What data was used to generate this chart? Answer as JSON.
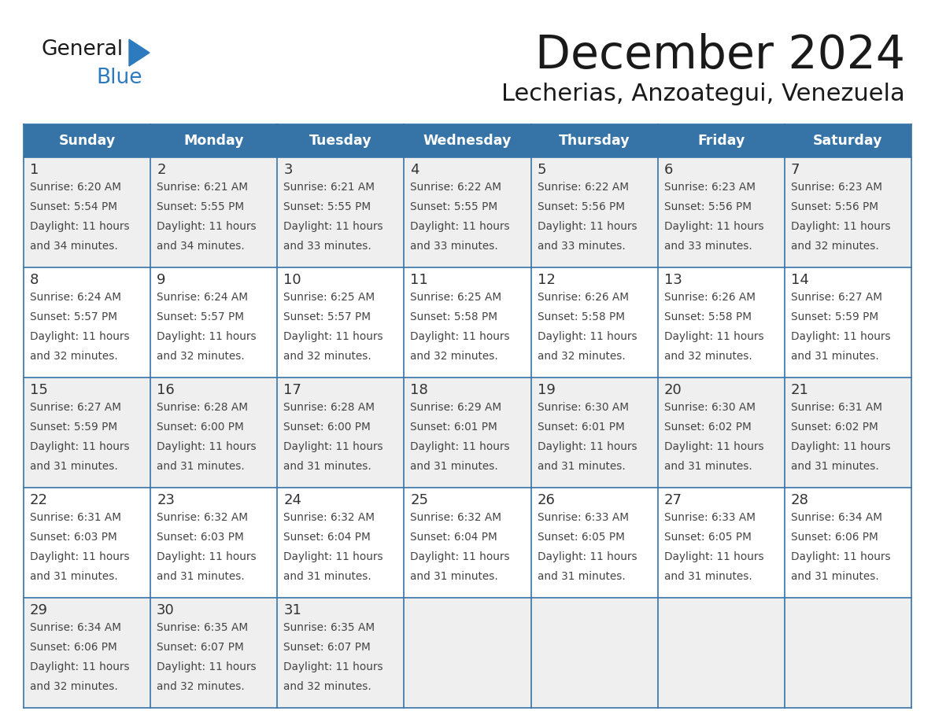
{
  "title": "December 2024",
  "subtitle": "Lecherias, Anzoategui, Venezuela",
  "days_of_week": [
    "Sunday",
    "Monday",
    "Tuesday",
    "Wednesday",
    "Thursday",
    "Friday",
    "Saturday"
  ],
  "header_bg": "#3674A8",
  "header_text": "#FFFFFF",
  "cell_bg_odd": "#EFEFEF",
  "cell_bg_even": "#FFFFFF",
  "cell_border": "#3674A8",
  "day_num_color": "#333333",
  "cell_text_color": "#444444",
  "logo_general_color": "#1a1a1a",
  "logo_blue_color": "#2E7ABF",
  "weeks": [
    {
      "days": [
        {
          "date": 1,
          "sunrise": "6:20 AM",
          "sunset": "5:54 PM",
          "daylight_h": "11 hours",
          "daylight_m": "and 34 minutes."
        },
        {
          "date": 2,
          "sunrise": "6:21 AM",
          "sunset": "5:55 PM",
          "daylight_h": "11 hours",
          "daylight_m": "and 34 minutes."
        },
        {
          "date": 3,
          "sunrise": "6:21 AM",
          "sunset": "5:55 PM",
          "daylight_h": "11 hours",
          "daylight_m": "and 33 minutes."
        },
        {
          "date": 4,
          "sunrise": "6:22 AM",
          "sunset": "5:55 PM",
          "daylight_h": "11 hours",
          "daylight_m": "and 33 minutes."
        },
        {
          "date": 5,
          "sunrise": "6:22 AM",
          "sunset": "5:56 PM",
          "daylight_h": "11 hours",
          "daylight_m": "and 33 minutes."
        },
        {
          "date": 6,
          "sunrise": "6:23 AM",
          "sunset": "5:56 PM",
          "daylight_h": "11 hours",
          "daylight_m": "and 33 minutes."
        },
        {
          "date": 7,
          "sunrise": "6:23 AM",
          "sunset": "5:56 PM",
          "daylight_h": "11 hours",
          "daylight_m": "and 32 minutes."
        }
      ]
    },
    {
      "days": [
        {
          "date": 8,
          "sunrise": "6:24 AM",
          "sunset": "5:57 PM",
          "daylight_h": "11 hours",
          "daylight_m": "and 32 minutes."
        },
        {
          "date": 9,
          "sunrise": "6:24 AM",
          "sunset": "5:57 PM",
          "daylight_h": "11 hours",
          "daylight_m": "and 32 minutes."
        },
        {
          "date": 10,
          "sunrise": "6:25 AM",
          "sunset": "5:57 PM",
          "daylight_h": "11 hours",
          "daylight_m": "and 32 minutes."
        },
        {
          "date": 11,
          "sunrise": "6:25 AM",
          "sunset": "5:58 PM",
          "daylight_h": "11 hours",
          "daylight_m": "and 32 minutes."
        },
        {
          "date": 12,
          "sunrise": "6:26 AM",
          "sunset": "5:58 PM",
          "daylight_h": "11 hours",
          "daylight_m": "and 32 minutes."
        },
        {
          "date": 13,
          "sunrise": "6:26 AM",
          "sunset": "5:58 PM",
          "daylight_h": "11 hours",
          "daylight_m": "and 32 minutes."
        },
        {
          "date": 14,
          "sunrise": "6:27 AM",
          "sunset": "5:59 PM",
          "daylight_h": "11 hours",
          "daylight_m": "and 31 minutes."
        }
      ]
    },
    {
      "days": [
        {
          "date": 15,
          "sunrise": "6:27 AM",
          "sunset": "5:59 PM",
          "daylight_h": "11 hours",
          "daylight_m": "and 31 minutes."
        },
        {
          "date": 16,
          "sunrise": "6:28 AM",
          "sunset": "6:00 PM",
          "daylight_h": "11 hours",
          "daylight_m": "and 31 minutes."
        },
        {
          "date": 17,
          "sunrise": "6:28 AM",
          "sunset": "6:00 PM",
          "daylight_h": "11 hours",
          "daylight_m": "and 31 minutes."
        },
        {
          "date": 18,
          "sunrise": "6:29 AM",
          "sunset": "6:01 PM",
          "daylight_h": "11 hours",
          "daylight_m": "and 31 minutes."
        },
        {
          "date": 19,
          "sunrise": "6:30 AM",
          "sunset": "6:01 PM",
          "daylight_h": "11 hours",
          "daylight_m": "and 31 minutes."
        },
        {
          "date": 20,
          "sunrise": "6:30 AM",
          "sunset": "6:02 PM",
          "daylight_h": "11 hours",
          "daylight_m": "and 31 minutes."
        },
        {
          "date": 21,
          "sunrise": "6:31 AM",
          "sunset": "6:02 PM",
          "daylight_h": "11 hours",
          "daylight_m": "and 31 minutes."
        }
      ]
    },
    {
      "days": [
        {
          "date": 22,
          "sunrise": "6:31 AM",
          "sunset": "6:03 PM",
          "daylight_h": "11 hours",
          "daylight_m": "and 31 minutes."
        },
        {
          "date": 23,
          "sunrise": "6:32 AM",
          "sunset": "6:03 PM",
          "daylight_h": "11 hours",
          "daylight_m": "and 31 minutes."
        },
        {
          "date": 24,
          "sunrise": "6:32 AM",
          "sunset": "6:04 PM",
          "daylight_h": "11 hours",
          "daylight_m": "and 31 minutes."
        },
        {
          "date": 25,
          "sunrise": "6:32 AM",
          "sunset": "6:04 PM",
          "daylight_h": "11 hours",
          "daylight_m": "and 31 minutes."
        },
        {
          "date": 26,
          "sunrise": "6:33 AM",
          "sunset": "6:05 PM",
          "daylight_h": "11 hours",
          "daylight_m": "and 31 minutes."
        },
        {
          "date": 27,
          "sunrise": "6:33 AM",
          "sunset": "6:05 PM",
          "daylight_h": "11 hours",
          "daylight_m": "and 31 minutes."
        },
        {
          "date": 28,
          "sunrise": "6:34 AM",
          "sunset": "6:06 PM",
          "daylight_h": "11 hours",
          "daylight_m": "and 31 minutes."
        }
      ]
    },
    {
      "days": [
        {
          "date": 29,
          "sunrise": "6:34 AM",
          "sunset": "6:06 PM",
          "daylight_h": "11 hours",
          "daylight_m": "and 32 minutes."
        },
        {
          "date": 30,
          "sunrise": "6:35 AM",
          "sunset": "6:07 PM",
          "daylight_h": "11 hours",
          "daylight_m": "and 32 minutes."
        },
        {
          "date": 31,
          "sunrise": "6:35 AM",
          "sunset": "6:07 PM",
          "daylight_h": "11 hours",
          "daylight_m": "and 32 minutes."
        },
        null,
        null,
        null,
        null
      ]
    }
  ]
}
